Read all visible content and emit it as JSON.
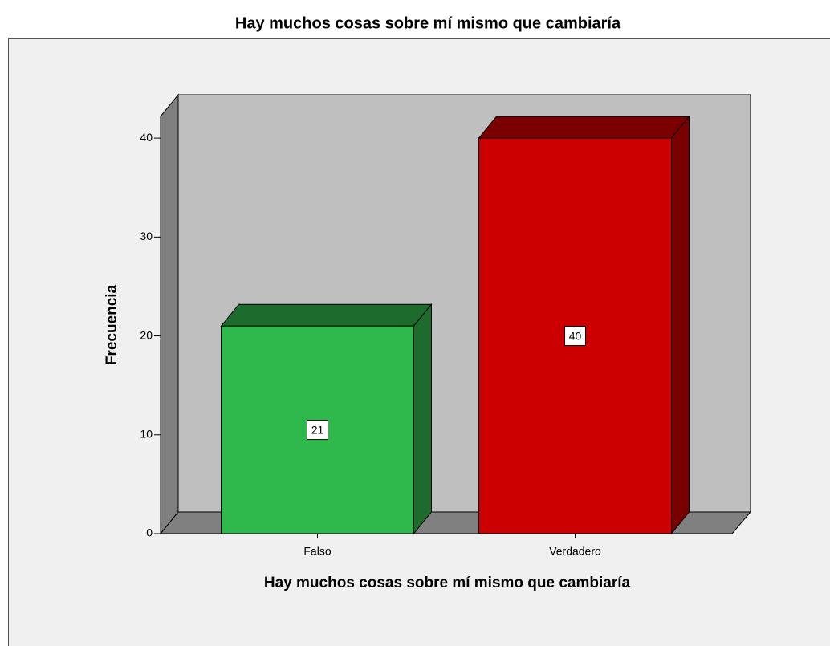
{
  "chart_data": {
    "type": "bar3d",
    "title": "Hay muchos cosas sobre mí mismo que cambiaría",
    "x_label": "Hay muchos cosas sobre mí mismo que cambiaría",
    "y_label": "Frecuencia",
    "categories": [
      "Falso",
      "Verdadero"
    ],
    "values": [
      21,
      40
    ],
    "colors": [
      "#2fb84b",
      "#cc0000"
    ],
    "side_colors": [
      "#1e6b2e",
      "#7a0000"
    ],
    "ylim": [
      0,
      42.2
    ],
    "yticks": [
      0,
      10,
      20,
      30,
      40
    ],
    "grid": false
  }
}
